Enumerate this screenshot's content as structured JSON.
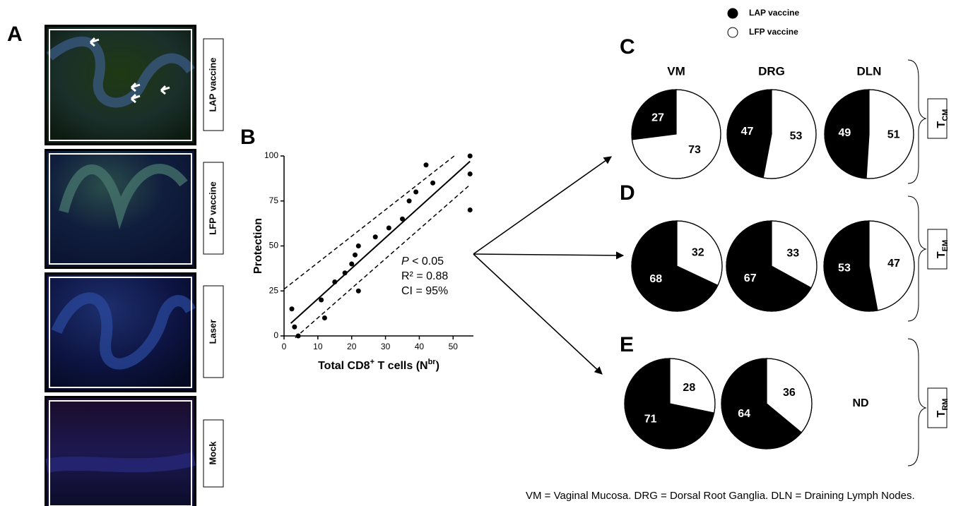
{
  "panel_labels": [
    "A",
    "B",
    "C",
    "D",
    "E"
  ],
  "panel_a": {
    "labels": [
      "LAP vaccine",
      "LFP vaccine",
      "Laser",
      "Mock"
    ]
  },
  "chart_data": [
    {
      "type": "scatter",
      "ylabel": "Protection",
      "xlabel_parts": [
        "Total CD8",
        "+",
        " T cells (N",
        "br",
        ")"
      ],
      "annotations": [
        [
          "P",
          " < 0.05"
        ],
        [
          "R² = 0.88"
        ],
        [
          "CI = 95%"
        ]
      ],
      "xlim": [
        0,
        56
      ],
      "ylim": [
        0,
        100
      ],
      "xticks": [
        0,
        10,
        20,
        30,
        40,
        50
      ],
      "yticks": [
        0,
        25,
        50,
        75,
        100
      ],
      "color": "#000000",
      "x": [
        2.3,
        3.1,
        4.2,
        11,
        12,
        15,
        18,
        20,
        21,
        22,
        22,
        27,
        31,
        35,
        37,
        39,
        42,
        44,
        55,
        55,
        55
      ],
      "values": [
        15,
        5,
        0,
        20,
        10,
        30,
        35,
        40,
        45,
        50,
        25,
        55,
        60,
        65,
        75,
        80,
        95,
        85,
        100,
        90,
        70
      ],
      "lines": [
        {
          "style": "solid",
          "x": [
            2,
            55
          ],
          "y": [
            7,
            97
          ]
        },
        {
          "style": "dashed",
          "x": [
            0,
            51
          ],
          "y": [
            26,
            101
          ]
        },
        {
          "style": "dashed",
          "x": [
            3.3,
            55
          ],
          "y": [
            -1,
            84
          ]
        }
      ]
    },
    {
      "type": "pie",
      "columns": [
        "VM",
        "DRG",
        "DLN"
      ],
      "rows": [
        {
          "label": "T",
          "sub": "CM"
        },
        {
          "label": "T",
          "sub": "EM"
        },
        {
          "label": "T",
          "sub": "RM"
        }
      ],
      "missing_label": "ND",
      "series": [
        {
          "name": "LAP vaccine",
          "color": "#000000",
          "values": [
            27,
            47,
            49,
            68,
            67,
            53,
            71,
            64,
            null
          ]
        },
        {
          "name": "LFP vaccine",
          "color": "#ffffff",
          "values": [
            73,
            53,
            51,
            32,
            33,
            47,
            28,
            36,
            null
          ]
        }
      ]
    }
  ],
  "footnote": "VM = Vaginal Mucosa. DRG = Dorsal Root Ganglia. DLN = Draining Lymph Nodes."
}
